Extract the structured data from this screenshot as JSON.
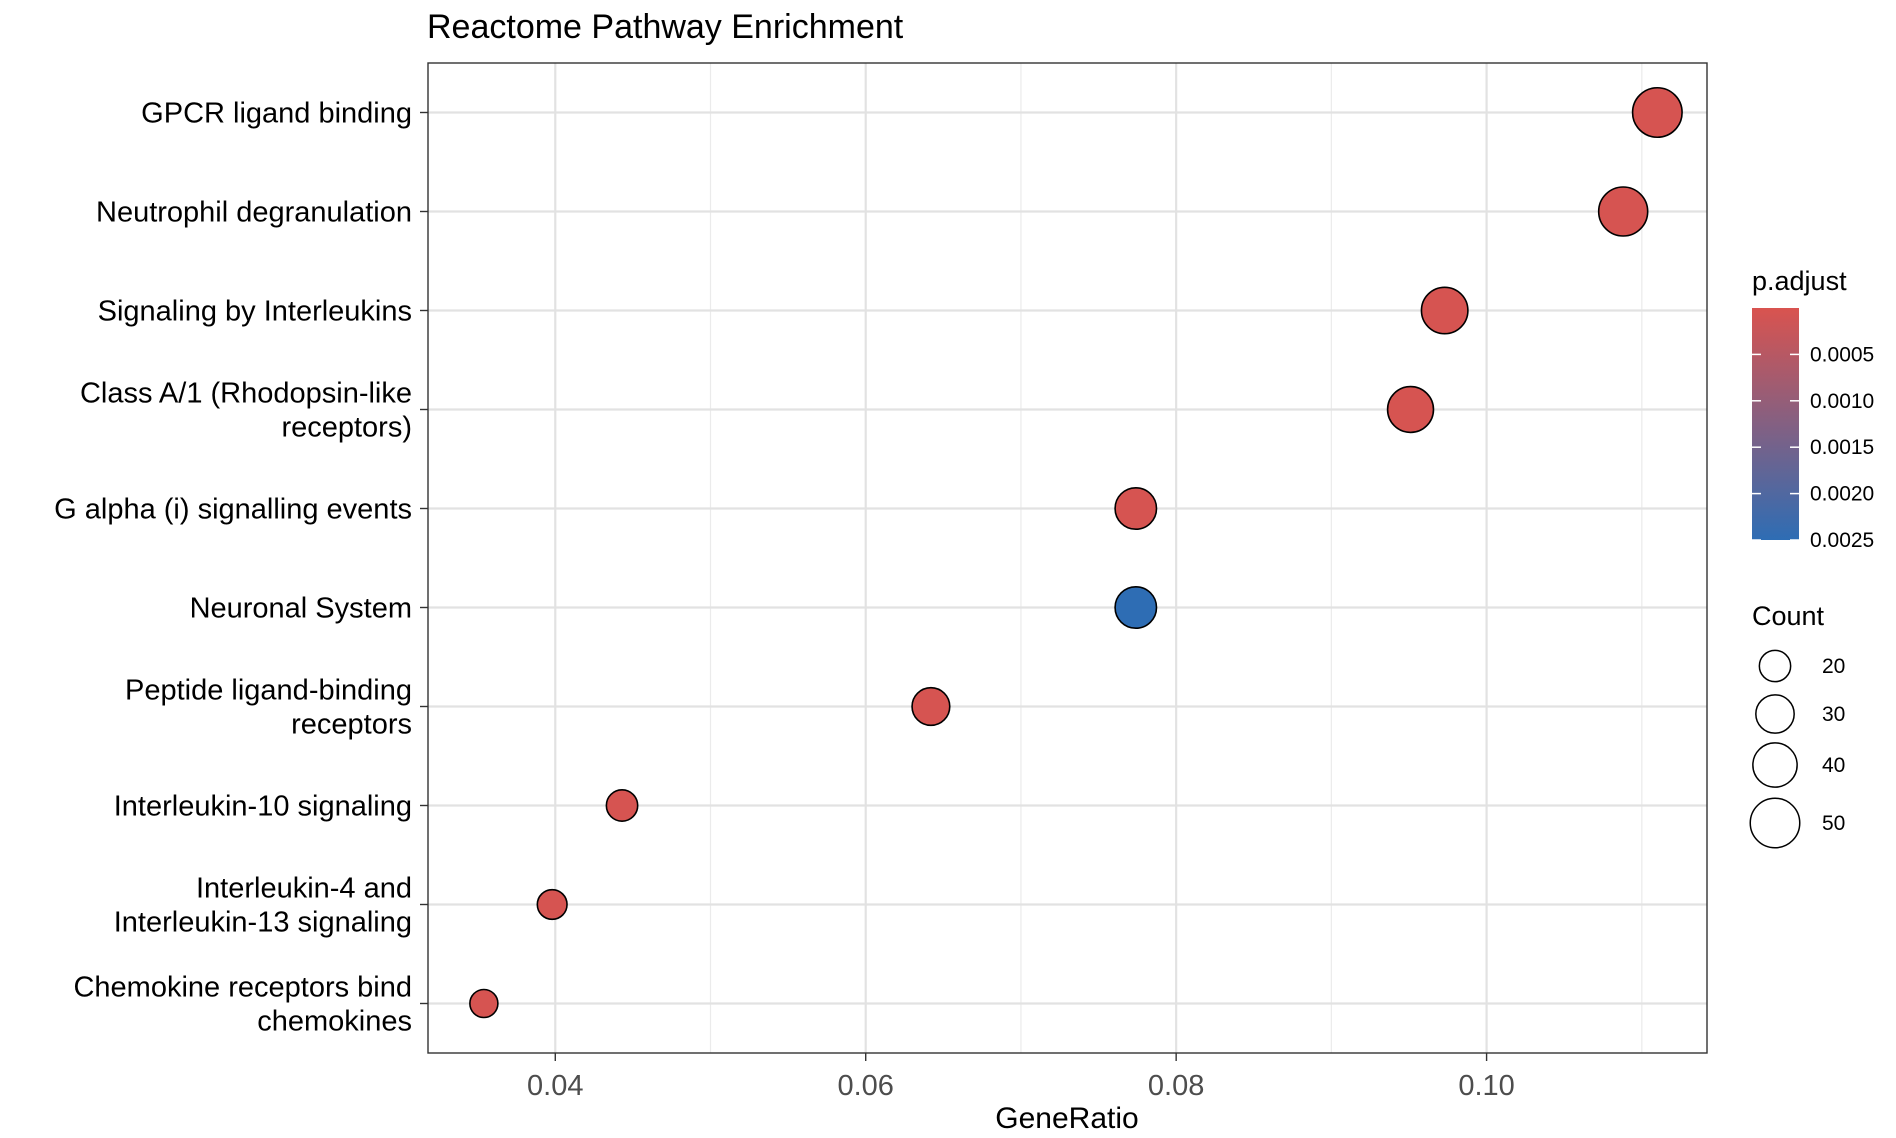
{
  "chart_data": {
    "type": "scatter",
    "title": "Reactome Pathway Enrichment",
    "xlabel": "GeneRatio",
    "ylabel": "",
    "xlim": [
      0.0318,
      0.1142
    ],
    "x_ticks": [
      0.04,
      0.06,
      0.08,
      0.1
    ],
    "x_tick_labels": [
      "0.04",
      "0.06",
      "0.08",
      "0.10"
    ],
    "grid": true,
    "categories": [
      [
        "GPCR ligand binding"
      ],
      [
        "Neutrophil degranulation"
      ],
      [
        "Signaling by Interleukins"
      ],
      [
        "Class A/1 (Rhodopsin-like",
        "receptors)"
      ],
      [
        "G alpha (i) signalling events"
      ],
      [
        "Neuronal System"
      ],
      [
        "Peptide ligand-binding",
        "receptors"
      ],
      [
        "Interleukin-10 signaling"
      ],
      [
        "Interleukin-4 and",
        "Interleukin-13 signaling"
      ],
      [
        "Chemokine receptors bind",
        "chemokines"
      ]
    ],
    "points": [
      {
        "x": 0.111,
        "count": 50,
        "p_adjust": 5e-05
      },
      {
        "x": 0.1088,
        "count": 49,
        "p_adjust": 5e-05
      },
      {
        "x": 0.0973,
        "count": 44,
        "p_adjust": 5e-05
      },
      {
        "x": 0.0951,
        "count": 43,
        "p_adjust": 5e-05
      },
      {
        "x": 0.0774,
        "count": 35,
        "p_adjust": 5e-05
      },
      {
        "x": 0.0774,
        "count": 35,
        "p_adjust": 0.0025
      },
      {
        "x": 0.0642,
        "count": 29,
        "p_adjust": 5e-05
      },
      {
        "x": 0.0443,
        "count": 20,
        "p_adjust": 5e-05
      },
      {
        "x": 0.0398,
        "count": 18,
        "p_adjust": 5e-05
      },
      {
        "x": 0.0354,
        "count": 16,
        "p_adjust": 5e-05
      }
    ],
    "color_legend": {
      "title": "p.adjust",
      "ticks": [
        0.0005,
        0.001,
        0.0015,
        0.002,
        0.0025
      ],
      "tick_labels": [
        "0.0005",
        "0.0010",
        "0.0015",
        "0.0020",
        "0.0025"
      ],
      "range": [
        0.0,
        0.0025
      ],
      "low_color": "#d9534f",
      "high_color": "#2e6db4"
    },
    "size_legend": {
      "title": "Count",
      "values": [
        20,
        30,
        40,
        50
      ],
      "labels": [
        "20",
        "30",
        "40",
        "50"
      ]
    },
    "legend_position": "right"
  }
}
